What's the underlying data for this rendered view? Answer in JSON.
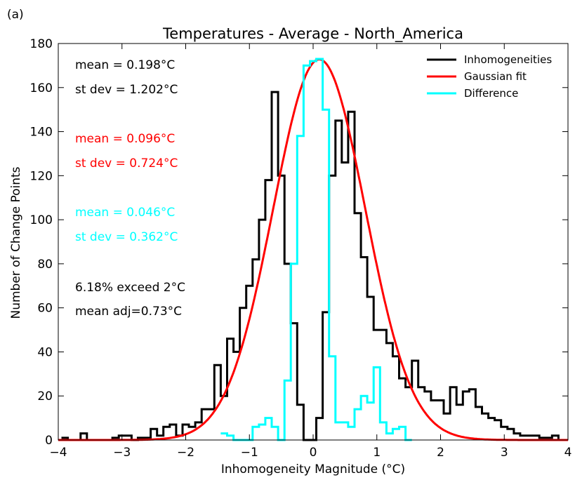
{
  "panel_label": "(a)",
  "chart_data": {
    "type": "line",
    "title": "Temperatures - Average - North_America",
    "xlabel": "Inhomogeneity Magnitude (°C)",
    "ylabel": "Number of Change Points",
    "xlim": [
      -4,
      4
    ],
    "ylim": [
      0,
      180
    ],
    "xticks": [
      "−4",
      "−3",
      "−2",
      "−1",
      "0",
      "1",
      "2",
      "3",
      "4"
    ],
    "yticks": [
      "0",
      "20",
      "40",
      "60",
      "80",
      "100",
      "120",
      "140",
      "160",
      "180"
    ],
    "grid": false,
    "legend_position": "top-right",
    "annotations": [
      {
        "text": "mean =  0.198°C",
        "color": "#000000"
      },
      {
        "text": "st dev =  1.202°C",
        "color": "#000000"
      },
      {
        "text": "mean =  0.096°C",
        "color": "#ff0000"
      },
      {
        "text": "st dev =  0.724°C",
        "color": "#ff0000"
      },
      {
        "text": "mean =  0.046°C",
        "color": "#00ffff"
      },
      {
        "text": "st dev =  0.362°C",
        "color": "#00ffff"
      },
      {
        "text": "6.18% exceed 2°C",
        "color": "#000000"
      },
      {
        "text": "mean adj=0.73°C",
        "color": "#000000"
      }
    ],
    "series": [
      {
        "name": "Inhomogeneities",
        "kind": "step",
        "color": "#000000",
        "bin_width": 0.1,
        "x": [
          -3.9,
          -3.8,
          -3.7,
          -3.6,
          -3.5,
          -3.4,
          -3.3,
          -3.2,
          -3.1,
          -3.0,
          -2.9,
          -2.8,
          -2.7,
          -2.6,
          -2.5,
          -2.4,
          -2.3,
          -2.2,
          -2.1,
          -2.0,
          -1.9,
          -1.8,
          -1.7,
          -1.6,
          -1.5,
          -1.4,
          -1.3,
          -1.2,
          -1.1,
          -1.0,
          -0.9,
          -0.8,
          -0.7,
          -0.6,
          -0.5,
          -0.4,
          -0.3,
          -0.2,
          -0.1,
          0.0,
          0.1,
          0.2,
          0.3,
          0.4,
          0.5,
          0.6,
          0.7,
          0.8,
          0.9,
          1.0,
          1.1,
          1.2,
          1.3,
          1.4,
          1.5,
          1.6,
          1.7,
          1.8,
          1.9,
          2.0,
          2.1,
          2.2,
          2.3,
          2.4,
          2.5,
          2.6,
          2.7,
          2.8,
          2.9,
          3.0,
          3.1,
          3.2,
          3.3,
          3.4,
          3.5,
          3.6,
          3.7,
          3.8,
          3.9
        ],
        "values": [
          1,
          0,
          0,
          3,
          0,
          0,
          0,
          0,
          1,
          2,
          2,
          0,
          1,
          1,
          5,
          2,
          6,
          7,
          2,
          7,
          6,
          8,
          14,
          14,
          34,
          20,
          46,
          40,
          60,
          70,
          82,
          100,
          118,
          158,
          120,
          80,
          53,
          16,
          0,
          0,
          10,
          58,
          120,
          145,
          126,
          149,
          103,
          83,
          65,
          50,
          50,
          44,
          38,
          28,
          24,
          36,
          24,
          22,
          18,
          18,
          12,
          24,
          16,
          22,
          23,
          15,
          12,
          10,
          9,
          6,
          5,
          3,
          2,
          2,
          2,
          1,
          1,
          2,
          0
        ]
      },
      {
        "name": "Gaussian fit",
        "kind": "curve",
        "color": "#ff0000",
        "mean": 0.096,
        "std": 0.724,
        "peak": 172.8
      },
      {
        "name": "Difference",
        "kind": "step",
        "color": "#00ffff",
        "bin_width": 0.1,
        "x": [
          -1.4,
          -1.3,
          -1.2,
          -1.1,
          -1.0,
          -0.9,
          -0.8,
          -0.7,
          -0.6,
          -0.5,
          -0.4,
          -0.3,
          -0.2,
          -0.1,
          0.0,
          0.1,
          0.2,
          0.3,
          0.4,
          0.5,
          0.6,
          0.7,
          0.8,
          0.9,
          1.0,
          1.1,
          1.2,
          1.3,
          1.4,
          1.5
        ],
        "values": [
          3,
          2,
          0,
          0,
          0,
          6,
          7,
          10,
          6,
          0,
          27,
          80,
          138,
          170,
          172,
          173,
          150,
          38,
          8,
          8,
          6,
          14,
          20,
          17,
          33,
          8,
          3,
          5,
          6,
          0
        ]
      }
    ]
  }
}
